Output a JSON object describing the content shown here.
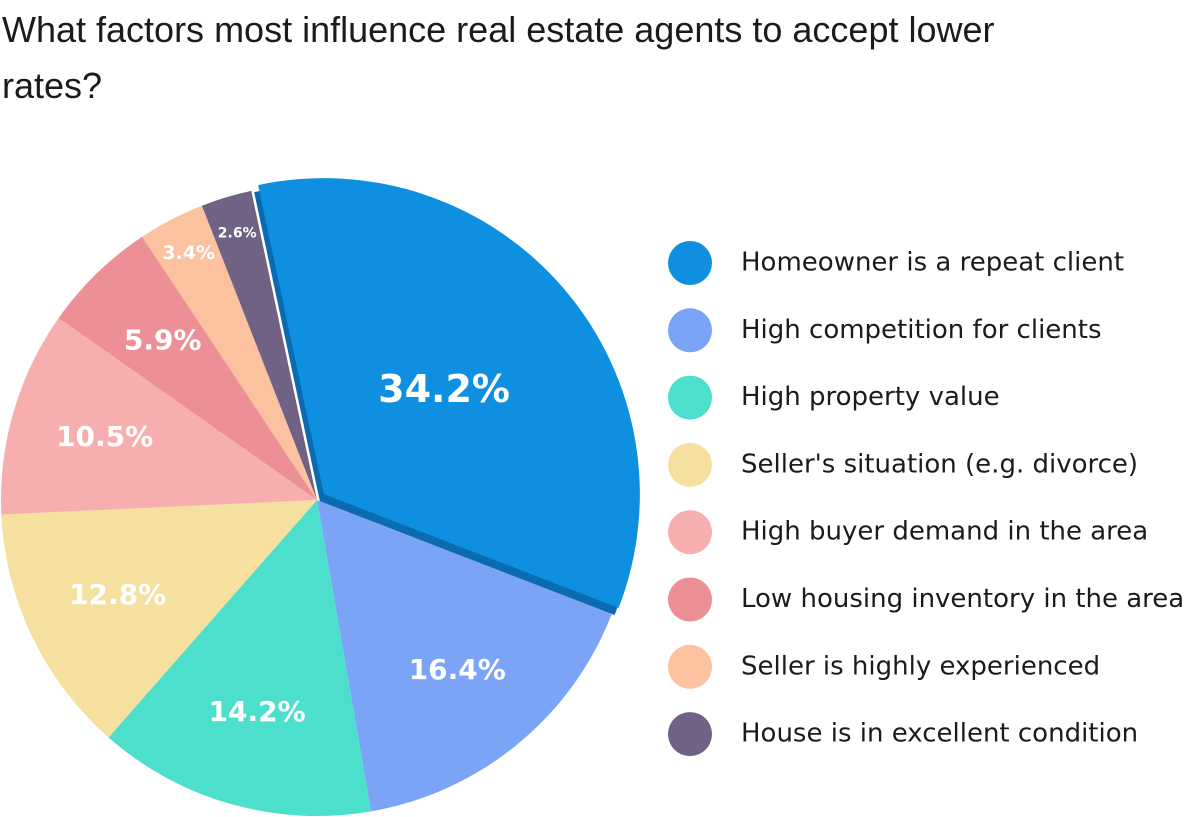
{
  "chart_data": {
    "type": "pie",
    "title": "What factors most influence real estate agents to accept lower rates?",
    "categories": [
      "Homeowner is a repeat client",
      "High competition for clients",
      "High property value",
      "Seller's situation (e.g. divorce)",
      "High buyer demand in the area",
      "Low housing inventory in the area",
      "Seller is highly experienced",
      "House is in excellent condition"
    ],
    "values": [
      34.2,
      16.4,
      14.2,
      12.8,
      10.5,
      5.9,
      3.4,
      2.6
    ],
    "value_labels": [
      "34.2%",
      "16.4%",
      "14.2%",
      "12.8%",
      "10.5%",
      "5.9%",
      "3.4%",
      "2.6%"
    ],
    "colors": [
      "#0f8fdf",
      "#7ba4f7",
      "#4cdfcc",
      "#f5e0a0",
      "#f7aeae",
      "#ec8f96",
      "#fcc19f",
      "#6f6284"
    ],
    "legend": "right"
  }
}
